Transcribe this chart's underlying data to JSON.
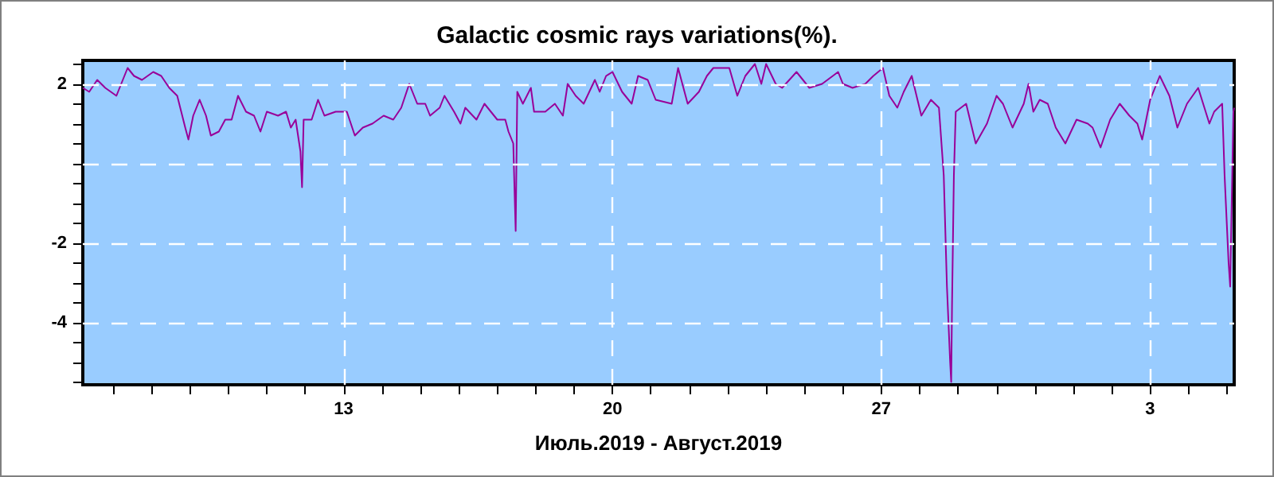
{
  "chart_data": {
    "type": "line",
    "title": "Galactic cosmic rays variations(%).",
    "xlabel": "Июль.2019 - Август.2019",
    "xlim": [
      "2019-07-06T05:00",
      "2019-08-05T04:30"
    ],
    "xticks": [
      {
        "value": "2019-07-07",
        "label": null
      },
      {
        "value": "2019-07-08",
        "label": null
      },
      {
        "value": "2019-07-09",
        "label": null
      },
      {
        "value": "2019-07-10",
        "label": null
      },
      {
        "value": "2019-07-11",
        "label": null
      },
      {
        "value": "2019-07-12",
        "label": null
      },
      {
        "value": "2019-07-13",
        "label": "13"
      },
      {
        "value": "2019-07-14",
        "label": null
      },
      {
        "value": "2019-07-15",
        "label": null
      },
      {
        "value": "2019-07-16",
        "label": null
      },
      {
        "value": "2019-07-17",
        "label": null
      },
      {
        "value": "2019-07-18",
        "label": null
      },
      {
        "value": "2019-07-19",
        "label": null
      },
      {
        "value": "2019-07-20",
        "label": "20"
      },
      {
        "value": "2019-07-21",
        "label": null
      },
      {
        "value": "2019-07-22",
        "label": null
      },
      {
        "value": "2019-07-23",
        "label": null
      },
      {
        "value": "2019-07-24",
        "label": null
      },
      {
        "value": "2019-07-25",
        "label": null
      },
      {
        "value": "2019-07-26",
        "label": null
      },
      {
        "value": "2019-07-27",
        "label": "27"
      },
      {
        "value": "2019-07-28",
        "label": null
      },
      {
        "value": "2019-07-29",
        "label": null
      },
      {
        "value": "2019-07-30",
        "label": null
      },
      {
        "value": "2019-07-31",
        "label": null
      },
      {
        "value": "2019-08-01",
        "label": null
      },
      {
        "value": "2019-08-02",
        "label": null
      },
      {
        "value": "2019-08-03",
        "label": "3"
      },
      {
        "value": "2019-08-04",
        "label": null
      },
      {
        "value": "2019-08-05",
        "label": null
      }
    ],
    "ylim": [
      -5.57,
      2.59
    ],
    "yticks": [
      {
        "value": -5.5,
        "label": null
      },
      {
        "value": -5,
        "label": null
      },
      {
        "value": -4.5,
        "label": null
      },
      -4,
      {
        "value": -3.5,
        "label": null
      },
      {
        "value": -3,
        "label": null
      },
      {
        "value": -2.5,
        "label": null
      },
      -2,
      {
        "value": -1.5,
        "label": null
      },
      {
        "value": -1,
        "label": null
      },
      {
        "value": -0.5,
        "label": null
      },
      {
        "value": 0,
        "label": null
      },
      {
        "value": 0.5,
        "label": null
      },
      {
        "value": 1,
        "label": null
      },
      {
        "value": 1.5,
        "label": null
      },
      2,
      {
        "value": 2.5,
        "label": null
      }
    ],
    "grid": true,
    "marker": "none",
    "series": [
      {
        "color": "#990099",
        "x": [
          "2019-07-06T05:00",
          "2019-07-06T09:00",
          "2019-07-06T14:00",
          "2019-07-06T19:00",
          "2019-07-07T02:00",
          "2019-07-07T05:00",
          "2019-07-07T09:00",
          "2019-07-07T13:00",
          "2019-07-07T18:00",
          "2019-07-08T01:00",
          "2019-07-08T06:00",
          "2019-07-08T11:00",
          "2019-07-08T16:00",
          "2019-07-08T21:00",
          "2019-07-08T23:00",
          "2019-07-09T02:00",
          "2019-07-09T06:00",
          "2019-07-09T10:00",
          "2019-07-09T13:00",
          "2019-07-09T18:00",
          "2019-07-09T22:00",
          "2019-07-10T02:00",
          "2019-07-10T06:00",
          "2019-07-10T11:00",
          "2019-07-10T16:00",
          "2019-07-10T20:00",
          "2019-07-11T00:00",
          "2019-07-11T07:00",
          "2019-07-11T12:00",
          "2019-07-11T15:00",
          "2019-07-11T18:00",
          "2019-07-11T21:00",
          "2019-07-11T22:00",
          "2019-07-11T23:00",
          "2019-07-12T04:00",
          "2019-07-12T08:00",
          "2019-07-12T12:00",
          "2019-07-12T19:00",
          "2019-07-13T02:00",
          "2019-07-13T07:00",
          "2019-07-13T12:00",
          "2019-07-13T18:00",
          "2019-07-14T01:00",
          "2019-07-14T07:00",
          "2019-07-14T12:00",
          "2019-07-14T17:00",
          "2019-07-14T22:00",
          "2019-07-15T03:00",
          "2019-07-15T06:00",
          "2019-07-15T12:00",
          "2019-07-15T15:00",
          "2019-07-15T21:00",
          "2019-07-16T01:00",
          "2019-07-16T04:00",
          "2019-07-16T11:00",
          "2019-07-16T16:00",
          "2019-07-16T20:00",
          "2019-07-17T00:00",
          "2019-07-17T05:00",
          "2019-07-17T07:00",
          "2019-07-17T10:00",
          "2019-07-17T11:00",
          "2019-07-17T11:30",
          "2019-07-17T12:30",
          "2019-07-17T16:00",
          "2019-07-17T21:00",
          "2019-07-17T23:00",
          "2019-07-18T06:00",
          "2019-07-18T12:00",
          "2019-07-18T17:00",
          "2019-07-18T20:00",
          "2019-07-19T01:00",
          "2019-07-19T06:00",
          "2019-07-19T13:00",
          "2019-07-19T16:00",
          "2019-07-19T20:00",
          "2019-07-20T00:00",
          "2019-07-20T06:00",
          "2019-07-20T12:00",
          "2019-07-20T16:00",
          "2019-07-20T22:00",
          "2019-07-21T03:00",
          "2019-07-21T13:00",
          "2019-07-21T17:00",
          "2019-07-21T23:00",
          "2019-07-22T06:00",
          "2019-07-22T11:00",
          "2019-07-22T15:00",
          "2019-07-23T01:00",
          "2019-07-23T06:00",
          "2019-07-23T11:00",
          "2019-07-23T17:00",
          "2019-07-23T21:00",
          "2019-07-24T00:00",
          "2019-07-24T06:00",
          "2019-07-24T10:00",
          "2019-07-24T19:00",
          "2019-07-25T03:00",
          "2019-07-25T11:00",
          "2019-07-25T21:00",
          "2019-07-26T00:00",
          "2019-07-26T06:00",
          "2019-07-26T14:00",
          "2019-07-26T19:00",
          "2019-07-27T01:00",
          "2019-07-27T05:00",
          "2019-07-27T10:00",
          "2019-07-27T14:00",
          "2019-07-27T19:00",
          "2019-07-28T01:00",
          "2019-07-28T07:00",
          "2019-07-28T12:00",
          "2019-07-28T15:00",
          "2019-07-28T17:00",
          "2019-07-28T19:00",
          "2019-07-28T19:40",
          "2019-07-28T20:10",
          "2019-07-28T21:20",
          "2019-07-28T22:30",
          "2019-07-29T05:00",
          "2019-07-29T11:00",
          "2019-07-29T18:00",
          "2019-07-30T00:00",
          "2019-07-30T04:00",
          "2019-07-30T10:00",
          "2019-07-30T17:00",
          "2019-07-30T20:00",
          "2019-07-30T23:00",
          "2019-07-31T03:00",
          "2019-07-31T08:00",
          "2019-07-31T13:00",
          "2019-07-31T19:00",
          "2019-08-01T02:00",
          "2019-08-01T09:00",
          "2019-08-01T12:00",
          "2019-08-01T17:00",
          "2019-08-01T23:00",
          "2019-08-02T05:00",
          "2019-08-02T11:00",
          "2019-08-02T16:00",
          "2019-08-02T19:00",
          "2019-08-03T00:00",
          "2019-08-03T06:00",
          "2019-08-03T12:00",
          "2019-08-03T17:00",
          "2019-08-03T23:00",
          "2019-08-04T06:00",
          "2019-08-04T13:00",
          "2019-08-04T16:00",
          "2019-08-04T21:00",
          "2019-08-04T22:30",
          "2019-08-05T01:00",
          "2019-08-05T02:00",
          "2019-08-05T04:00",
          "2019-08-05T04:30"
        ],
        "values": [
          1.9,
          1.8,
          2.1,
          1.9,
          1.7,
          2.0,
          2.4,
          2.2,
          2.1,
          2.3,
          2.2,
          1.9,
          1.7,
          0.9,
          0.6,
          1.2,
          1.6,
          1.2,
          0.7,
          0.8,
          1.1,
          1.1,
          1.7,
          1.3,
          1.2,
          0.8,
          1.3,
          1.2,
          1.3,
          0.9,
          1.1,
          0.3,
          -0.6,
          1.1,
          1.1,
          1.6,
          1.2,
          1.3,
          1.3,
          0.7,
          0.9,
          1.0,
          1.2,
          1.1,
          1.4,
          2.0,
          1.5,
          1.5,
          1.2,
          1.4,
          1.7,
          1.3,
          1.0,
          1.4,
          1.1,
          1.5,
          1.3,
          1.1,
          1.1,
          0.8,
          0.5,
          -1.0,
          -1.7,
          1.8,
          1.5,
          1.9,
          1.3,
          1.3,
          1.5,
          1.2,
          2.0,
          1.7,
          1.5,
          2.1,
          1.8,
          2.2,
          2.3,
          1.8,
          1.5,
          2.2,
          2.1,
          1.6,
          1.5,
          2.4,
          1.5,
          1.8,
          2.2,
          2.4,
          2.4,
          1.7,
          2.2,
          2.5,
          2.0,
          2.5,
          2.0,
          1.9,
          2.3,
          1.9,
          2.0,
          2.3,
          2.0,
          1.9,
          2.0,
          2.2,
          2.4,
          1.7,
          1.4,
          1.8,
          2.2,
          1.2,
          1.6,
          1.4,
          -0.3,
          -3.1,
          -5.0,
          -5.5,
          -3.6,
          -0.3,
          1.3,
          1.5,
          0.5,
          1.0,
          1.7,
          1.5,
          0.9,
          1.5,
          2.0,
          1.3,
          1.6,
          1.5,
          0.9,
          0.5,
          1.1,
          1.0,
          0.9,
          0.4,
          1.1,
          1.5,
          1.2,
          1.0,
          0.6,
          1.6,
          2.2,
          1.7,
          0.9,
          1.5,
          1.9,
          1.0,
          1.3,
          1.5,
          -0.3,
          -2.5,
          -3.1,
          1.3,
          1.4
        ]
      }
    ]
  }
}
